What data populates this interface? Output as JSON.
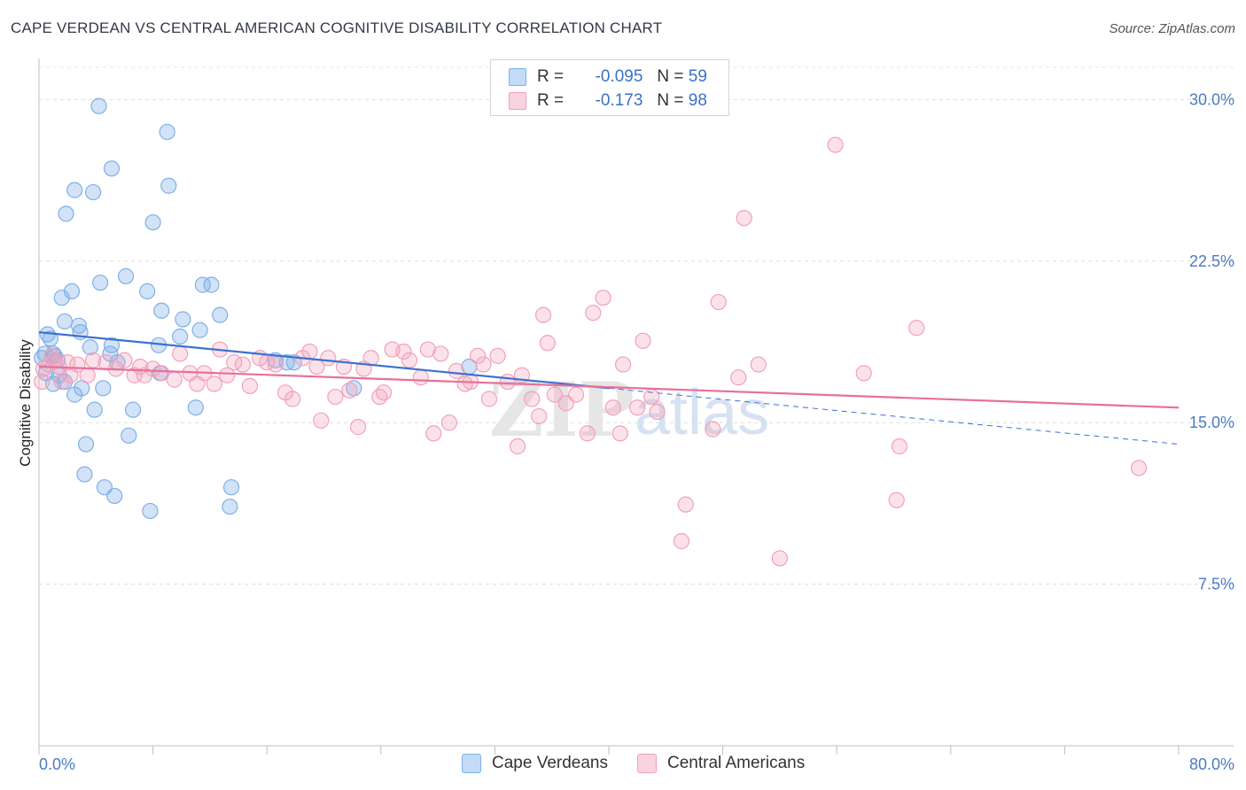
{
  "title": "CAPE VERDEAN VS CENTRAL AMERICAN COGNITIVE DISABILITY CORRELATION CHART",
  "source": "Source: ZipAtlas.com",
  "legend": {
    "row1": {
      "r_label": "R =",
      "r_value": "-0.095",
      "n_label": "N =",
      "n_value": "59"
    },
    "row2": {
      "r_label": "R =",
      "r_value": "-0.173",
      "n_label": "N =",
      "n_value": "98"
    }
  },
  "bottom_legend": {
    "series1": "Cape Verdeans",
    "series2": "Central Americans"
  },
  "colors": {
    "blue": "#7fb0e8",
    "blue_line": "#3a72d0",
    "pink": "#f2a0ba",
    "pink_line": "#e8709a",
    "tick": "#4a7cc4"
  },
  "chart_data": {
    "type": "scatter",
    "title": "CAPE VERDEAN VS CENTRAL AMERICAN COGNITIVE DISABILITY CORRELATION CHART",
    "xlabel": "",
    "ylabel": "Cognitive Disability",
    "xlim": [
      0,
      80
    ],
    "ylim": [
      0,
      31.5
    ],
    "x_tick_labels": [
      "0.0%",
      "80.0%"
    ],
    "y_ticks": [
      7.5,
      15.0,
      22.5,
      30.0
    ],
    "y_tick_labels": [
      "7.5%",
      "15.0%",
      "22.5%",
      "30.0%"
    ],
    "series": [
      {
        "name": "Cape Verdeans",
        "r": -0.095,
        "n": 59,
        "trend": {
          "x0": 0,
          "y0": 19.2,
          "x1": 40,
          "y1": 16.6,
          "dash_to_x": 80,
          "dash_to_y": 14.0
        },
        "points": [
          [
            4.2,
            29.7
          ],
          [
            9.0,
            28.5
          ],
          [
            5.1,
            26.8
          ],
          [
            2.5,
            25.8
          ],
          [
            3.8,
            25.7
          ],
          [
            9.1,
            26.0
          ],
          [
            1.9,
            24.7
          ],
          [
            8.0,
            24.3
          ],
          [
            6.1,
            21.8
          ],
          [
            4.3,
            21.5
          ],
          [
            7.6,
            21.1
          ],
          [
            11.5,
            21.4
          ],
          [
            12.1,
            21.4
          ],
          [
            2.3,
            21.1
          ],
          [
            1.6,
            20.8
          ],
          [
            8.6,
            20.2
          ],
          [
            10.1,
            19.8
          ],
          [
            12.7,
            20.0
          ],
          [
            1.8,
            19.7
          ],
          [
            2.8,
            19.5
          ],
          [
            0.6,
            19.1
          ],
          [
            0.8,
            18.9
          ],
          [
            2.9,
            19.2
          ],
          [
            11.3,
            19.3
          ],
          [
            9.9,
            19.0
          ],
          [
            5.1,
            18.6
          ],
          [
            3.6,
            18.5
          ],
          [
            8.4,
            18.6
          ],
          [
            0.4,
            18.2
          ],
          [
            1.0,
            18.2
          ],
          [
            1.3,
            17.9
          ],
          [
            5.5,
            17.8
          ],
          [
            5.0,
            18.2
          ],
          [
            0.5,
            17.3
          ],
          [
            1.4,
            17.2
          ],
          [
            1.0,
            16.8
          ],
          [
            1.8,
            16.9
          ],
          [
            4.5,
            16.6
          ],
          [
            8.5,
            17.3
          ],
          [
            2.5,
            16.3
          ],
          [
            16.6,
            17.9
          ],
          [
            17.9,
            17.8
          ],
          [
            17.4,
            17.8
          ],
          [
            22.1,
            16.6
          ],
          [
            30.2,
            17.6
          ],
          [
            3.0,
            16.6
          ],
          [
            3.9,
            15.6
          ],
          [
            6.6,
            15.6
          ],
          [
            11.0,
            15.7
          ],
          [
            6.3,
            14.4
          ],
          [
            3.3,
            14.0
          ],
          [
            3.2,
            12.6
          ],
          [
            4.6,
            12.0
          ],
          [
            5.3,
            11.6
          ],
          [
            13.5,
            12.0
          ],
          [
            7.8,
            10.9
          ],
          [
            13.4,
            11.1
          ],
          [
            0.2,
            18.0
          ],
          [
            1.1,
            18.1
          ]
        ]
      },
      {
        "name": "Central Americans",
        "r": -0.173,
        "n": 98,
        "trend": {
          "x0": 0,
          "y0": 17.6,
          "x1": 80,
          "y1": 15.7
        },
        "points": [
          [
            0.3,
            17.5
          ],
          [
            0.7,
            17.7
          ],
          [
            0.2,
            16.9
          ],
          [
            1.1,
            17.9
          ],
          [
            1.4,
            17.6
          ],
          [
            2.0,
            17.8
          ],
          [
            2.7,
            17.7
          ],
          [
            3.4,
            17.2
          ],
          [
            3.8,
            17.9
          ],
          [
            4.7,
            17.8
          ],
          [
            5.4,
            17.5
          ],
          [
            6.0,
            17.9
          ],
          [
            6.7,
            17.2
          ],
          [
            7.1,
            17.6
          ],
          [
            7.4,
            17.2
          ],
          [
            8.0,
            17.5
          ],
          [
            8.6,
            17.3
          ],
          [
            9.5,
            17.0
          ],
          [
            9.9,
            18.2
          ],
          [
            10.6,
            17.3
          ],
          [
            11.1,
            16.8
          ],
          [
            11.6,
            17.3
          ],
          [
            12.3,
            16.8
          ],
          [
            12.7,
            18.4
          ],
          [
            13.2,
            17.2
          ],
          [
            13.7,
            17.8
          ],
          [
            14.3,
            17.7
          ],
          [
            14.8,
            16.7
          ],
          [
            15.5,
            18.0
          ],
          [
            16.0,
            17.8
          ],
          [
            16.6,
            17.7
          ],
          [
            17.3,
            16.4
          ],
          [
            17.8,
            16.1
          ],
          [
            18.5,
            18.0
          ],
          [
            19.0,
            18.3
          ],
          [
            19.5,
            17.6
          ],
          [
            19.8,
            15.1
          ],
          [
            20.3,
            18.0
          ],
          [
            20.8,
            16.2
          ],
          [
            21.4,
            17.6
          ],
          [
            21.8,
            16.5
          ],
          [
            22.4,
            14.8
          ],
          [
            22.8,
            17.5
          ],
          [
            23.3,
            18.0
          ],
          [
            23.9,
            16.2
          ],
          [
            24.2,
            16.4
          ],
          [
            24.8,
            18.4
          ],
          [
            25.6,
            18.3
          ],
          [
            26.0,
            17.9
          ],
          [
            26.8,
            17.1
          ],
          [
            27.3,
            18.4
          ],
          [
            27.7,
            14.5
          ],
          [
            28.2,
            18.2
          ],
          [
            28.8,
            15.0
          ],
          [
            29.3,
            17.4
          ],
          [
            29.9,
            16.8
          ],
          [
            30.3,
            16.9
          ],
          [
            30.8,
            18.1
          ],
          [
            31.2,
            17.7
          ],
          [
            31.6,
            16.1
          ],
          [
            32.2,
            18.1
          ],
          [
            32.9,
            16.9
          ],
          [
            33.6,
            13.9
          ],
          [
            33.9,
            17.2
          ],
          [
            34.6,
            16.1
          ],
          [
            35.1,
            15.3
          ],
          [
            35.4,
            20.0
          ],
          [
            35.7,
            18.7
          ],
          [
            36.2,
            16.3
          ],
          [
            37.0,
            15.9
          ],
          [
            37.7,
            16.3
          ],
          [
            38.5,
            14.5
          ],
          [
            38.9,
            20.1
          ],
          [
            39.6,
            20.8
          ],
          [
            40.3,
            15.7
          ],
          [
            40.8,
            14.5
          ],
          [
            41.0,
            17.7
          ],
          [
            42.0,
            15.7
          ],
          [
            42.4,
            18.8
          ],
          [
            43.0,
            16.2
          ],
          [
            43.4,
            15.5
          ],
          [
            45.1,
            9.5
          ],
          [
            45.4,
            11.2
          ],
          [
            47.3,
            14.7
          ],
          [
            47.7,
            20.6
          ],
          [
            49.1,
            17.1
          ],
          [
            50.5,
            17.7
          ],
          [
            49.5,
            24.5
          ],
          [
            52.0,
            8.7
          ],
          [
            55.9,
            27.9
          ],
          [
            57.9,
            17.3
          ],
          [
            60.4,
            13.9
          ],
          [
            60.2,
            11.4
          ],
          [
            61.6,
            19.4
          ],
          [
            77.2,
            12.9
          ],
          [
            1.6,
            16.9
          ],
          [
            2.2,
            17.2
          ],
          [
            0.9,
            18.1
          ]
        ]
      }
    ]
  }
}
